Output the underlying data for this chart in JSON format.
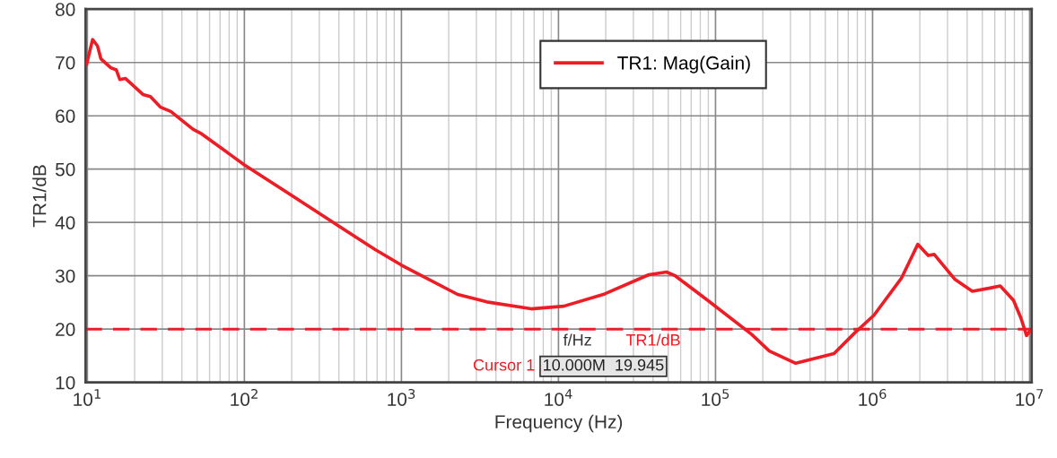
{
  "chart_data": {
    "type": "line",
    "xlabel": "Frequency (Hz)",
    "ylabel": "TR1/dB",
    "log": "x",
    "grid": true,
    "legend": "top",
    "line_style": "solid",
    "marker": "none",
    "xlim": [
      9.75,
      10300000
    ],
    "ylim": [
      10,
      80
    ],
    "xticks": [
      {
        "value": 10,
        "label": "10$^{1}$"
      },
      {
        "value": 100,
        "label": "10$^{2}$"
      },
      {
        "value": 1000,
        "label": "10$^{3}$"
      },
      {
        "value": 10000,
        "label": "10$^{4}$"
      },
      {
        "value": 100000,
        "label": "10$^{5}$"
      },
      {
        "value": 1000000,
        "label": "10$^{6}$"
      },
      {
        "value": 10000000,
        "label": "10$^{7}$"
      }
    ],
    "yticks": [
      10,
      20,
      30,
      40,
      50,
      60,
      70,
      80
    ],
    "series": [
      {
        "name": "TR1: Mag(Gain)",
        "color": "#ee1c25",
        "x": [
          9.9,
          10.8,
          11.6,
          12.2,
          14.1,
          15.3,
          16.1,
          17.5,
          22.6,
          25.2,
          29.3,
          34,
          47,
          53.5,
          100,
          204,
          372,
          681,
          1000,
          2280,
          3500,
          6700,
          10800,
          19700,
          37600,
          48700,
          55400,
          89000,
          170000,
          220000,
          324000,
          568000,
          770000,
          1020000,
          1530000,
          1940000,
          2260000,
          2470000,
          3350000,
          4320000,
          5590000,
          6500000,
          7890000,
          8800000,
          9560000,
          10000000
        ],
        "values": [
          69.7,
          74.3,
          73.1,
          70.7,
          69.0,
          68.6,
          66.8,
          67.0,
          64.0,
          63.6,
          61.6,
          60.8,
          57.5,
          56.6,
          50.8,
          44.9,
          39.9,
          34.9,
          32.0,
          26.5,
          25.1,
          23.8,
          24.3,
          26.6,
          30.2,
          30.7,
          30.0,
          25.4,
          19.0,
          15.9,
          13.6,
          15.4,
          19.3,
          22.6,
          29.6,
          35.9,
          33.8,
          34.0,
          29.3,
          27.1,
          27.7,
          28.1,
          25.4,
          22.1,
          18.8,
          19.6
        ]
      }
    ],
    "ref_lines": [
      {
        "axis": "y",
        "value": 20,
        "color": "#ee1c25",
        "line_style": "dashed"
      }
    ],
    "annotations": [
      "f/Hz",
      "TR1/dB",
      "Cursor 1",
      "10.000M  19.945"
    ]
  }
}
